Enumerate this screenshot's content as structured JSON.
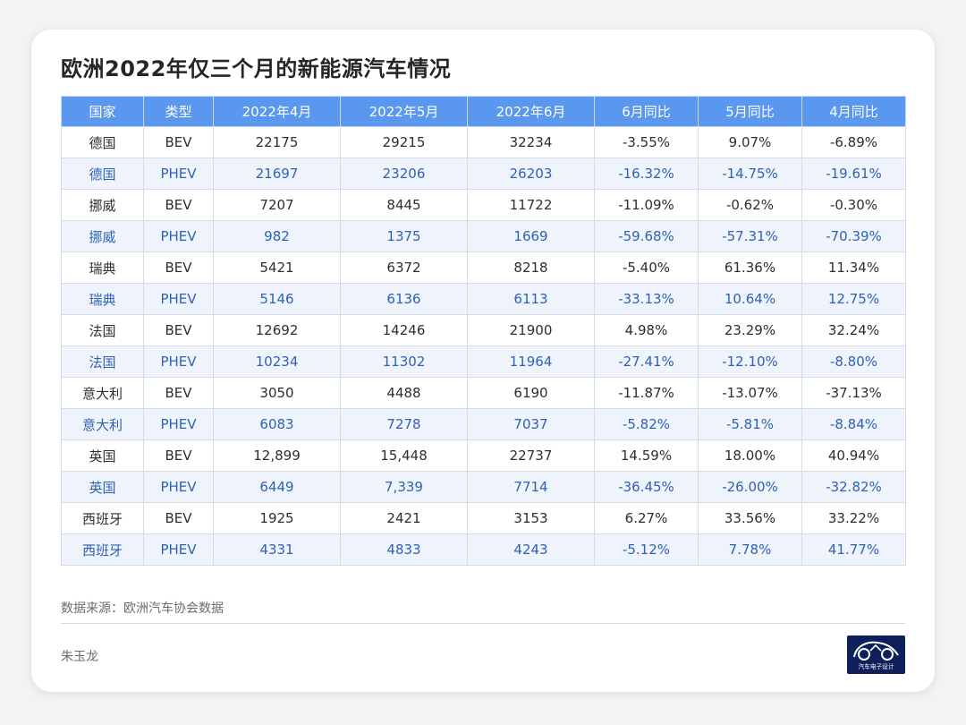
{
  "title": "欧洲2022年仅三个月的新能源汽车情况",
  "source": "数据来源：欧洲汽车协会数据",
  "author": "朱玉龙",
  "logo_text": "汽车电子设计",
  "colors": {
    "header": "#5a97ee",
    "even_row_text": "#2f62b5",
    "even_row_bg": "#eef3fc",
    "logo_bg": "#0f1f5c"
  },
  "chart_data": {
    "type": "table",
    "title": "欧洲2022年仅三个月的新能源汽车情况",
    "columns": [
      "国家",
      "类型",
      "2022年4月",
      "2022年5月",
      "2022年6月",
      "6月同比",
      "5月同比",
      "4月同比"
    ],
    "rows": [
      [
        "德国",
        "BEV",
        "22175",
        "29215",
        "32234",
        "-3.55%",
        "9.07%",
        "-6.89%"
      ],
      [
        "德国",
        "PHEV",
        "21697",
        "23206",
        "26203",
        "-16.32%",
        "-14.75%",
        "-19.61%"
      ],
      [
        "挪威",
        "BEV",
        "7207",
        "8445",
        "11722",
        "-11.09%",
        "-0.62%",
        "-0.30%"
      ],
      [
        "挪威",
        "PHEV",
        "982",
        "1375",
        "1669",
        "-59.68%",
        "-57.31%",
        "-70.39%"
      ],
      [
        "瑞典",
        "BEV",
        "5421",
        "6372",
        "8218",
        "-5.40%",
        "61.36%",
        "11.34%"
      ],
      [
        "瑞典",
        "PHEV",
        "5146",
        "6136",
        "6113",
        "-33.13%",
        "10.64%",
        "12.75%"
      ],
      [
        "法国",
        "BEV",
        "12692",
        "14246",
        "21900",
        "4.98%",
        "23.29%",
        "32.24%"
      ],
      [
        "法国",
        "PHEV",
        "10234",
        "11302",
        "11964",
        "-27.41%",
        "-12.10%",
        "-8.80%"
      ],
      [
        "意大利",
        "BEV",
        "3050",
        "4488",
        "6190",
        "-11.87%",
        "-13.07%",
        "-37.13%"
      ],
      [
        "意大利",
        "PHEV",
        "6083",
        "7278",
        "7037",
        "-5.82%",
        "-5.81%",
        "-8.84%"
      ],
      [
        "英国",
        "BEV",
        "12,899",
        "15,448",
        "22737",
        "14.59%",
        "18.00%",
        "40.94%"
      ],
      [
        "英国",
        "PHEV",
        "6449",
        "7,339",
        "7714",
        "-36.45%",
        "-26.00%",
        "-32.82%"
      ],
      [
        "西班牙",
        "BEV",
        "1925",
        "2421",
        "3153",
        "6.27%",
        "33.56%",
        "33.22%"
      ],
      [
        "西班牙",
        "PHEV",
        "4331",
        "4833",
        "4243",
        "-5.12%",
        "7.78%",
        "41.77%"
      ]
    ]
  }
}
